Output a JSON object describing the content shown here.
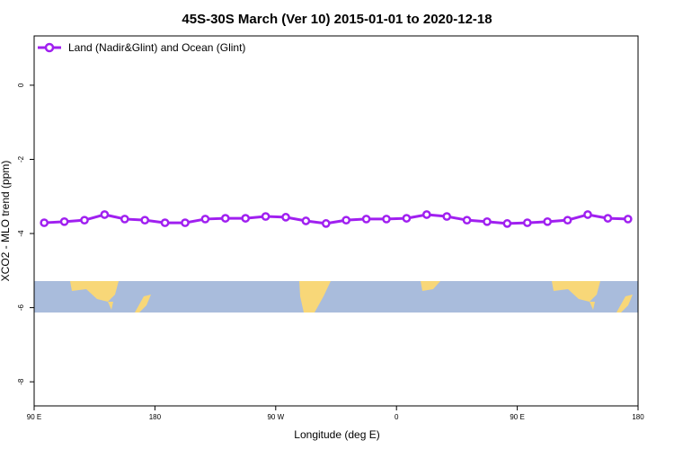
{
  "chart_data": {
    "type": "line",
    "title": "45S-30S March (Ver 10)   2015-01-01 to 2020-12-18",
    "x_label": "Longitude (deg E)",
    "y_label": "XCO2 - MLO trend (ppm)",
    "x": [
      97.5,
      112.5,
      127.5,
      142.5,
      157.5,
      172.5,
      187.5,
      202.5,
      217.5,
      232.5,
      247.5,
      262.5,
      277.5,
      292.5,
      307.5,
      322.5,
      337.5,
      352.5,
      367.5,
      382.5,
      397.5,
      412.5,
      427.5,
      442.5,
      457.5,
      472.5,
      487.5,
      502.5,
      517.5,
      532.5
    ],
    "series": [
      {
        "name": "Land (Nadir&Glint) and Ocean (Glint)",
        "color": "#a020f0",
        "values": [
          -3.71,
          -3.68,
          -3.64,
          -3.49,
          -3.61,
          -3.64,
          -3.71,
          -3.71,
          -3.61,
          -3.59,
          -3.59,
          -3.54,
          -3.56,
          -3.66,
          -3.73,
          -3.64,
          -3.61,
          -3.61,
          -3.59,
          -3.49,
          -3.54,
          -3.64,
          -3.68,
          -3.73,
          -3.71,
          -3.68,
          -3.64,
          -3.49,
          -3.59,
          -3.61
        ]
      }
    ],
    "xlim": [
      90,
      540
    ],
    "xticks": [
      {
        "value": 90,
        "label": "90 E"
      },
      180,
      {
        "value": 270,
        "label": "90 W"
      },
      {
        "value": 360,
        "label": "0"
      },
      {
        "value": 450,
        "label": "90 E"
      },
      {
        "value": 540,
        "label": "180"
      }
    ],
    "ylim": [
      -8.65,
      1.33
    ],
    "yticks": [
      0,
      -2,
      -4,
      -6,
      -8
    ],
    "legend": "top-left"
  }
}
